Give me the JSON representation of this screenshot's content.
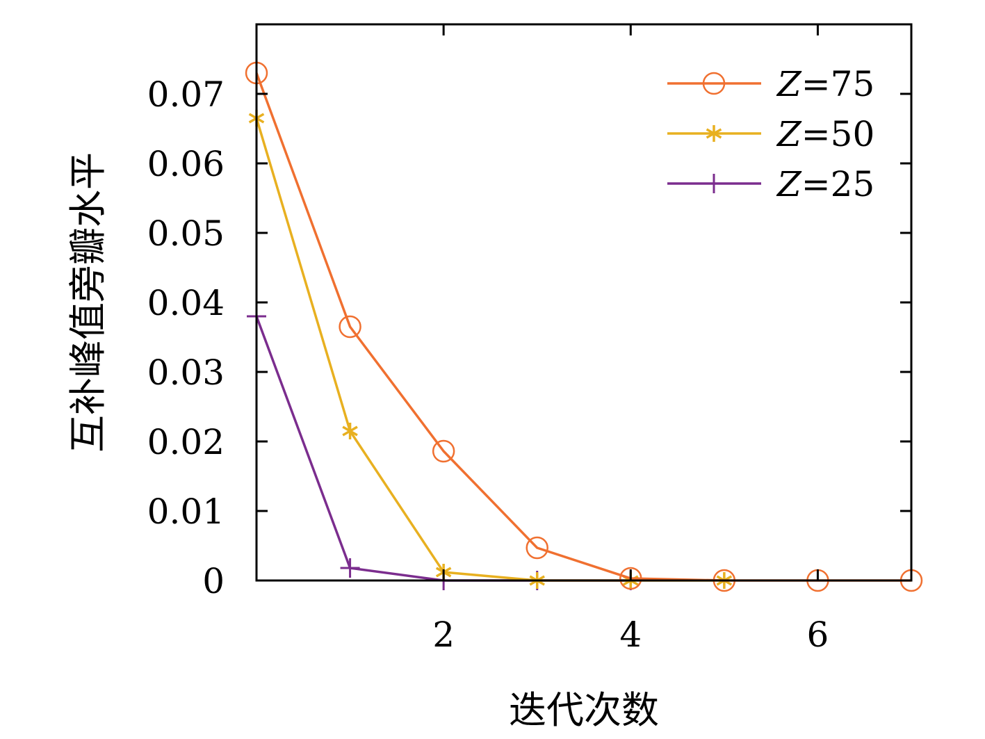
{
  "chart_data": {
    "type": "line",
    "title": "",
    "xlabel": "迭代次数",
    "ylabel": "互补峰值旁瓣水平",
    "xlim": [
      0,
      7
    ],
    "ylim": [
      0,
      0.08
    ],
    "xticks": [
      2,
      4,
      6
    ],
    "xtick_labels": [
      "2",
      "4",
      "6"
    ],
    "yticks": [
      0,
      0.01,
      0.02,
      0.03,
      0.04,
      0.05,
      0.06,
      0.07
    ],
    "ytick_labels": [
      "0",
      "0.01",
      "0.02",
      "0.03",
      "0.04",
      "0.05",
      "0.06",
      "0.07"
    ],
    "grid": false,
    "legend_position": "top-right",
    "x": [
      0,
      1,
      2,
      3,
      4,
      5,
      6,
      7
    ],
    "series": [
      {
        "name": "Z=75",
        "legend_var": "Z",
        "legend_rest": "=75",
        "color": "#F07030",
        "marker": "circle",
        "x": [
          0,
          1,
          2,
          3,
          4,
          5,
          6,
          7
        ],
        "values": [
          0.073,
          0.0365,
          0.0186,
          0.0047,
          0.0003,
          0.0,
          0.0,
          0.0
        ]
      },
      {
        "name": "Z=50",
        "legend_var": "Z",
        "legend_rest": "=50",
        "color": "#E8B020",
        "marker": "asterisk",
        "x": [
          0,
          1,
          2,
          3,
          4,
          5
        ],
        "values": [
          0.0665,
          0.0215,
          0.0012,
          0.0,
          0.0,
          0.0
        ]
      },
      {
        "name": "Z=25",
        "legend_var": "Z",
        "legend_rest": "=25",
        "color": "#7B2D8E",
        "marker": "plus",
        "x": [
          0,
          1,
          2,
          3,
          4
        ],
        "values": [
          0.038,
          0.0018,
          0.0,
          0.0,
          0.0
        ]
      }
    ]
  }
}
